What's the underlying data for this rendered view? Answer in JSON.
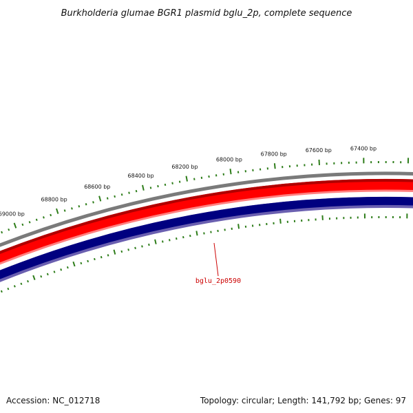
{
  "title": "Burkholderia glumae BGR1 plasmid bglu_2p, complete sequence",
  "footer": {
    "accession": "Accession: NC_012718",
    "summary": "Topology: circular; Length: 141,792 bp; Genes: 97"
  },
  "ruler_labels": [
    "69000 bp",
    "68800 bp",
    "68600 bp",
    "68400 bp",
    "68200 bp",
    "68000 bp",
    "67800 bp",
    "67600 bp",
    "67400 bp"
  ],
  "gene_label": "bglu_2p0590",
  "colors": {
    "ruler_ticks": "#2e7d1a",
    "outer_ring": "#7a7a7a",
    "forward_strand": "#ff0000",
    "forward_strand_dark": "#b00000",
    "reverse_strand": "#000080",
    "reverse_strand_edge": "#6a5fb0",
    "gene_pointer": "#cc0000"
  }
}
